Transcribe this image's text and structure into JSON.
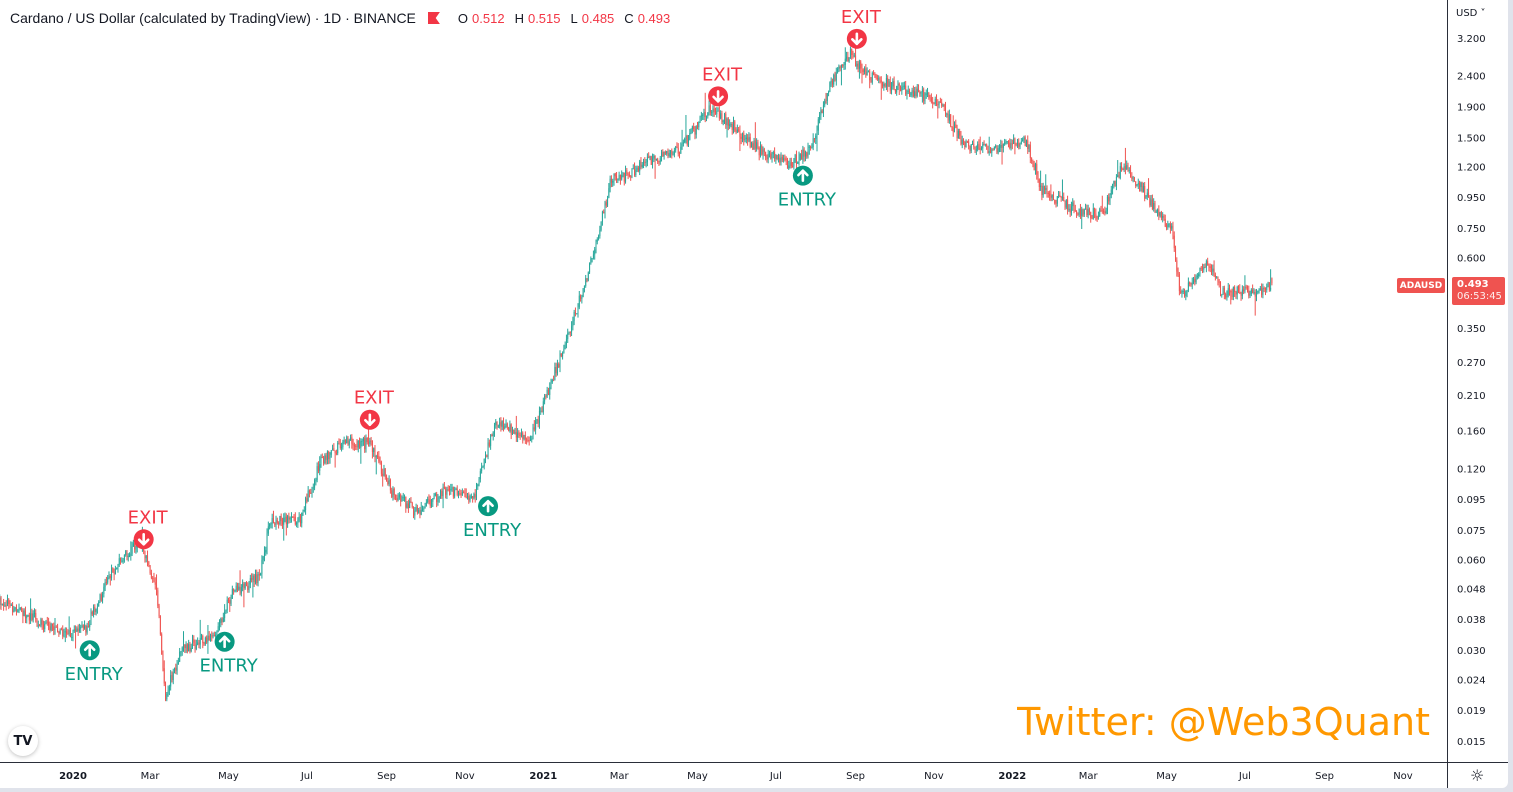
{
  "header": {
    "title": "Cardano / US Dollar (calculated by TradingView) · 1D · BINANCE",
    "ohlc": [
      {
        "key": "O",
        "value": "0.512"
      },
      {
        "key": "H",
        "value": "0.515"
      },
      {
        "key": "L",
        "value": "0.485"
      },
      {
        "key": "C",
        "value": "0.493"
      }
    ]
  },
  "price_axis": {
    "currency_label": "USD ˅",
    "symbol_badge": "ADAUSD",
    "last_price": "0.493",
    "countdown": "06:53:45"
  },
  "watermark": "Twitter: @Web3Quant",
  "logo": "TV",
  "colors": {
    "up": "#26a69a",
    "down": "#ef5350",
    "entry": "#089981",
    "exit": "#f23645",
    "watermark": "#ff9800"
  },
  "icons": {
    "settings": "gear-icon",
    "currency_dropdown": "chevron-down-icon"
  },
  "chart_data": {
    "type": "candlestick",
    "symbol": "ADAUSD",
    "interval": "1D",
    "y_scale": "log",
    "ylim": [
      0.015,
      3.2
    ],
    "grid": false,
    "y_ticks": [
      "3.200",
      "2.400",
      "1.900",
      "1.500",
      "1.200",
      "0.950",
      "0.750",
      "0.600",
      "0.350",
      "0.270",
      "0.210",
      "0.160",
      "0.120",
      "0.095",
      "0.075",
      "0.060",
      "0.048",
      "0.038",
      "0.030",
      "0.024",
      "0.019",
      "0.015"
    ],
    "x_ticks": [
      {
        "label": "2020",
        "date": "2020-01-01"
      },
      {
        "label": "Mar",
        "date": "2020-03-01"
      },
      {
        "label": "May",
        "date": "2020-05-01"
      },
      {
        "label": "Jul",
        "date": "2020-07-01"
      },
      {
        "label": "Sep",
        "date": "2020-09-01"
      },
      {
        "label": "Nov",
        "date": "2020-11-01"
      },
      {
        "label": "2021",
        "date": "2021-01-01"
      },
      {
        "label": "Mar",
        "date": "2021-03-01"
      },
      {
        "label": "May",
        "date": "2021-05-01"
      },
      {
        "label": "Jul",
        "date": "2021-07-01"
      },
      {
        "label": "Sep",
        "date": "2021-09-01"
      },
      {
        "label": "Nov",
        "date": "2021-11-01"
      },
      {
        "label": "2022",
        "date": "2022-01-01"
      },
      {
        "label": "Mar",
        "date": "2022-03-01"
      },
      {
        "label": "May",
        "date": "2022-05-01"
      },
      {
        "label": "Jul",
        "date": "2022-07-01"
      },
      {
        "label": "Sep",
        "date": "2022-09-01"
      },
      {
        "label": "Nov",
        "date": "2022-11-01"
      }
    ],
    "approx_close_path": [
      [
        "2019-11-04",
        0.044
      ],
      [
        "2019-11-27",
        0.0395
      ],
      [
        "2019-12-22",
        0.034
      ],
      [
        "2020-01-10",
        0.035
      ],
      [
        "2020-02-01",
        0.055
      ],
      [
        "2020-02-22",
        0.069
      ],
      [
        "2020-03-06",
        0.047
      ],
      [
        "2020-03-13",
        0.0215
      ],
      [
        "2020-03-25",
        0.03
      ],
      [
        "2020-04-20",
        0.034
      ],
      [
        "2020-05-05",
        0.047
      ],
      [
        "2020-05-25",
        0.052
      ],
      [
        "2020-06-03",
        0.082
      ],
      [
        "2020-06-25",
        0.08
      ],
      [
        "2020-07-12",
        0.128
      ],
      [
        "2020-08-01",
        0.149
      ],
      [
        "2020-08-20",
        0.144
      ],
      [
        "2020-09-05",
        0.101
      ],
      [
        "2020-09-25",
        0.085
      ],
      [
        "2020-10-15",
        0.101
      ],
      [
        "2020-11-08",
        0.097
      ],
      [
        "2020-11-25",
        0.174
      ],
      [
        "2020-12-22",
        0.149
      ],
      [
        "2021-01-05",
        0.218
      ],
      [
        "2021-01-22",
        0.347
      ],
      [
        "2021-02-08",
        0.59
      ],
      [
        "2021-02-23",
        1.09
      ],
      [
        "2021-03-06",
        1.12
      ],
      [
        "2021-03-25",
        1.26
      ],
      [
        "2021-04-17",
        1.37
      ],
      [
        "2021-05-10",
        1.85
      ],
      [
        "2021-05-25",
        1.7
      ],
      [
        "2021-06-17",
        1.37
      ],
      [
        "2021-07-10",
        1.22
      ],
      [
        "2021-07-28",
        1.37
      ],
      [
        "2021-08-12",
        2.24
      ],
      [
        "2021-08-28",
        2.83
      ],
      [
        "2021-09-09",
        2.4
      ],
      [
        "2021-10-02",
        2.2
      ],
      [
        "2021-11-03",
        2.0
      ],
      [
        "2021-11-25",
        1.42
      ],
      [
        "2021-12-20",
        1.37
      ],
      [
        "2022-01-12",
        1.47
      ],
      [
        "2022-01-24",
        1.0
      ],
      [
        "2022-02-20",
        0.86
      ],
      [
        "2022-03-12",
        0.83
      ],
      [
        "2022-03-28",
        1.22
      ],
      [
        "2022-04-17",
        0.94
      ],
      [
        "2022-05-06",
        0.72
      ],
      [
        "2022-05-12",
        0.44
      ],
      [
        "2022-06-01",
        0.59
      ],
      [
        "2022-06-13",
        0.46
      ],
      [
        "2022-07-10",
        0.46
      ],
      [
        "2022-07-22",
        0.493
      ]
    ],
    "last_candle": {
      "open": 0.512,
      "high": 0.515,
      "low": 0.485,
      "close": 0.493
    },
    "signals": [
      {
        "type": "entry",
        "label": "ENTRY",
        "date": "2020-01-14",
        "price": 0.03
      },
      {
        "type": "exit",
        "label": "EXIT",
        "date": "2020-02-25",
        "price": 0.0699
      },
      {
        "type": "entry",
        "label": "ENTRY",
        "date": "2020-04-28",
        "price": 0.032
      },
      {
        "type": "exit",
        "label": "EXIT",
        "date": "2020-08-19",
        "price": 0.174
      },
      {
        "type": "entry",
        "label": "ENTRY",
        "date": "2020-11-19",
        "price": 0.09
      },
      {
        "type": "exit",
        "label": "EXIT",
        "date": "2021-05-17",
        "price": 2.05
      },
      {
        "type": "entry",
        "label": "ENTRY",
        "date": "2021-07-22",
        "price": 1.12
      },
      {
        "type": "exit",
        "label": "EXIT",
        "date": "2021-09-02",
        "price": 3.18
      }
    ]
  }
}
